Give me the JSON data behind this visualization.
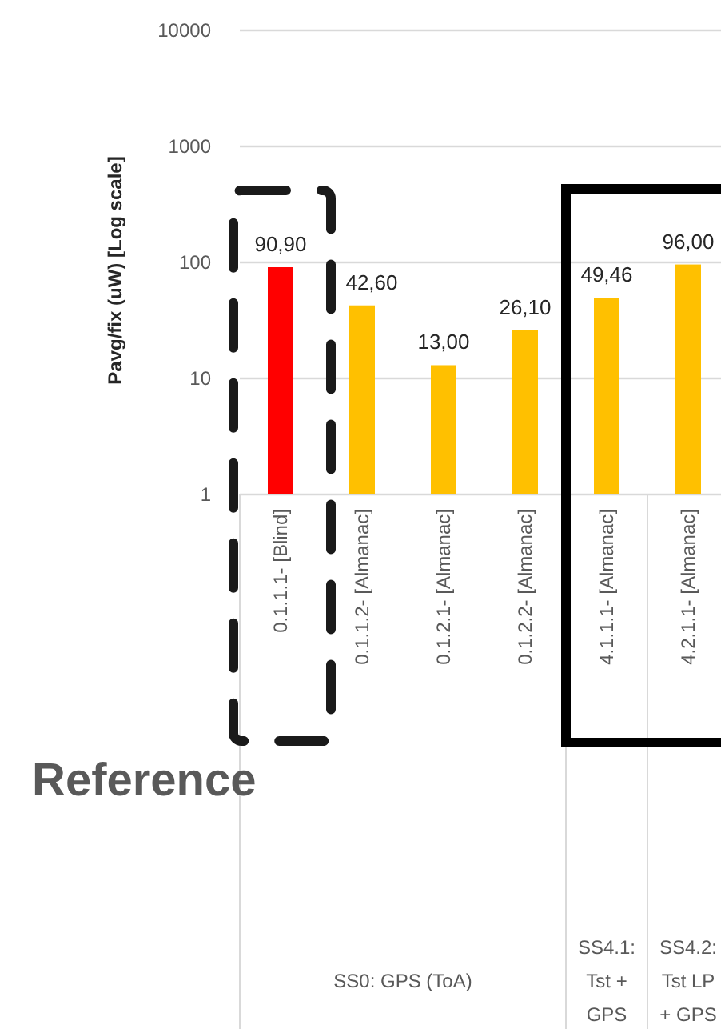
{
  "chart_data": {
    "type": "bar",
    "ylabel": "Pavg/fix (uW) [Log scale]",
    "categories": [
      "0.1.1.1- [Blind]",
      "0.1.1.2- [Almanac]",
      "0.1.2.1- [Almanac]",
      "0.1.2.2- [Almanac]",
      "4.1.1.1- [Almanac]",
      "4.2.1.1- [Almanac]"
    ],
    "values": [
      90.9,
      42.6,
      13,
      26.1,
      49.46,
      96
    ],
    "colors": [
      "#ff0000",
      "#ffc000",
      "#ffc000",
      "#ffc000",
      "#ffc000",
      "#ffc000"
    ],
    "value_labels": [
      "90,90",
      "42,60",
      "13,00",
      "26,10",
      "49,46",
      "96,00"
    ],
    "log": true,
    "ylim": [
      1,
      10000
    ],
    "yticks": [
      1,
      10,
      100,
      1000,
      10000
    ],
    "grid": "y",
    "annotations": [
      "Reference",
      "SS0: GPS (ToA)",
      "SS4.1: Tst + GPS",
      "SS4.2: Tst LP + GPS"
    ]
  }
}
